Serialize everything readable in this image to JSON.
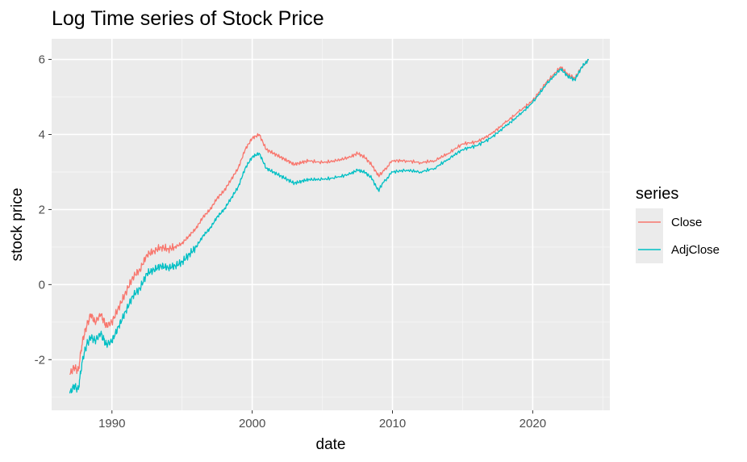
{
  "chart_data": {
    "type": "line",
    "title": "Log Time series of Stock Price",
    "xlabel": "date",
    "ylabel": "stock price",
    "xlim": [
      1985.7,
      2025.5
    ],
    "ylim": [
      -3.35,
      6.55
    ],
    "x_ticks": [
      1990,
      2000,
      2010,
      2020
    ],
    "x_tick_labels": [
      "1990",
      "2000",
      "2010",
      "2020"
    ],
    "y_ticks": [
      -2,
      0,
      2,
      4,
      6
    ],
    "y_tick_labels": [
      "-2",
      "0",
      "2",
      "4",
      "6"
    ],
    "grid": true,
    "legend": {
      "title": "series",
      "placement": "right"
    },
    "series": [
      {
        "name": "Close",
        "color": "#f8766d",
        "points": [
          [
            1987.0,
            -2.4
          ],
          [
            1987.3,
            -2.2
          ],
          [
            1987.6,
            -2.3
          ],
          [
            1987.9,
            -1.5
          ],
          [
            1988.2,
            -1.1
          ],
          [
            1988.5,
            -0.8
          ],
          [
            1988.8,
            -1.0
          ],
          [
            1989.2,
            -0.8
          ],
          [
            1989.6,
            -1.1
          ],
          [
            1990.0,
            -1.0
          ],
          [
            1990.5,
            -0.6
          ],
          [
            1991.0,
            -0.2
          ],
          [
            1991.5,
            0.2
          ],
          [
            1992.0,
            0.4
          ],
          [
            1992.5,
            0.8
          ],
          [
            1993.0,
            0.9
          ],
          [
            1993.5,
            1.0
          ],
          [
            1994.0,
            0.95
          ],
          [
            1994.5,
            1.0
          ],
          [
            1995.0,
            1.1
          ],
          [
            1995.5,
            1.3
          ],
          [
            1996.0,
            1.5
          ],
          [
            1996.5,
            1.8
          ],
          [
            1997.0,
            2.0
          ],
          [
            1997.5,
            2.3
          ],
          [
            1998.0,
            2.5
          ],
          [
            1998.5,
            2.8
          ],
          [
            1999.0,
            3.1
          ],
          [
            1999.5,
            3.6
          ],
          [
            2000.0,
            3.9
          ],
          [
            2000.5,
            4.0
          ],
          [
            2001.0,
            3.6
          ],
          [
            2001.5,
            3.5
          ],
          [
            2002.0,
            3.4
          ],
          [
            2002.5,
            3.3
          ],
          [
            2003.0,
            3.2
          ],
          [
            2003.5,
            3.25
          ],
          [
            2004.0,
            3.3
          ],
          [
            2005.0,
            3.25
          ],
          [
            2006.0,
            3.3
          ],
          [
            2007.0,
            3.4
          ],
          [
            2007.5,
            3.5
          ],
          [
            2008.0,
            3.4
          ],
          [
            2008.5,
            3.2
          ],
          [
            2009.0,
            2.9
          ],
          [
            2009.3,
            3.0
          ],
          [
            2010.0,
            3.3
          ],
          [
            2011.0,
            3.3
          ],
          [
            2012.0,
            3.25
          ],
          [
            2013.0,
            3.3
          ],
          [
            2014.0,
            3.5
          ],
          [
            2015.0,
            3.75
          ],
          [
            2016.0,
            3.8
          ],
          [
            2017.0,
            4.0
          ],
          [
            2018.0,
            4.3
          ],
          [
            2019.0,
            4.6
          ],
          [
            2020.0,
            4.9
          ],
          [
            2021.0,
            5.4
          ],
          [
            2022.0,
            5.8
          ],
          [
            2022.5,
            5.6
          ],
          [
            2023.0,
            5.5
          ],
          [
            2023.5,
            5.8
          ],
          [
            2024.0,
            6.0
          ]
        ]
      },
      {
        "name": "AdjClose",
        "color": "#00bfc4",
        "points": [
          [
            1987.0,
            -2.9
          ],
          [
            1987.3,
            -2.7
          ],
          [
            1987.6,
            -2.8
          ],
          [
            1987.9,
            -2.0
          ],
          [
            1988.2,
            -1.6
          ],
          [
            1988.5,
            -1.4
          ],
          [
            1988.8,
            -1.5
          ],
          [
            1989.2,
            -1.3
          ],
          [
            1989.6,
            -1.6
          ],
          [
            1990.0,
            -1.5
          ],
          [
            1990.5,
            -1.1
          ],
          [
            1991.0,
            -0.7
          ],
          [
            1991.5,
            -0.3
          ],
          [
            1992.0,
            -0.1
          ],
          [
            1992.5,
            0.3
          ],
          [
            1993.0,
            0.4
          ],
          [
            1993.5,
            0.5
          ],
          [
            1994.0,
            0.45
          ],
          [
            1994.5,
            0.5
          ],
          [
            1995.0,
            0.6
          ],
          [
            1995.5,
            0.8
          ],
          [
            1996.0,
            1.0
          ],
          [
            1996.5,
            1.3
          ],
          [
            1997.0,
            1.5
          ],
          [
            1997.5,
            1.8
          ],
          [
            1998.0,
            2.0
          ],
          [
            1998.5,
            2.3
          ],
          [
            1999.0,
            2.6
          ],
          [
            1999.5,
            3.1
          ],
          [
            2000.0,
            3.4
          ],
          [
            2000.5,
            3.5
          ],
          [
            2001.0,
            3.1
          ],
          [
            2001.5,
            3.0
          ],
          [
            2002.0,
            2.9
          ],
          [
            2002.5,
            2.8
          ],
          [
            2003.0,
            2.7
          ],
          [
            2003.5,
            2.75
          ],
          [
            2004.0,
            2.8
          ],
          [
            2005.0,
            2.8
          ],
          [
            2006.0,
            2.85
          ],
          [
            2007.0,
            2.95
          ],
          [
            2007.5,
            3.05
          ],
          [
            2008.0,
            3.0
          ],
          [
            2008.5,
            2.85
          ],
          [
            2009.0,
            2.5
          ],
          [
            2009.3,
            2.7
          ],
          [
            2010.0,
            3.0
          ],
          [
            2011.0,
            3.05
          ],
          [
            2012.0,
            3.0
          ],
          [
            2013.0,
            3.1
          ],
          [
            2014.0,
            3.35
          ],
          [
            2015.0,
            3.6
          ],
          [
            2016.0,
            3.7
          ],
          [
            2017.0,
            3.9
          ],
          [
            2018.0,
            4.2
          ],
          [
            2019.0,
            4.5
          ],
          [
            2020.0,
            4.85
          ],
          [
            2021.0,
            5.35
          ],
          [
            2022.0,
            5.75
          ],
          [
            2022.5,
            5.55
          ],
          [
            2023.0,
            5.45
          ],
          [
            2023.5,
            5.8
          ],
          [
            2024.0,
            6.0
          ]
        ]
      }
    ]
  }
}
